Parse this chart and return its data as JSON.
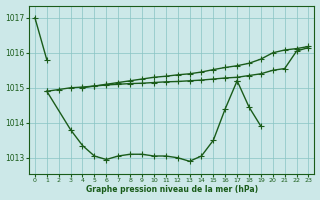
{
  "xlabel": "Graphe pression niveau de la mer (hPa)",
  "background_color": "#cce8e8",
  "line_color": "#1a5c1a",
  "x": [
    0,
    1,
    2,
    3,
    4,
    5,
    6,
    7,
    8,
    9,
    10,
    11,
    12,
    13,
    14,
    15,
    16,
    17,
    18,
    19,
    20,
    21,
    22,
    23
  ],
  "series": {
    "s1": [
      1017.0,
      1015.8,
      null,
      null,
      null,
      null,
      null,
      null,
      null,
      null,
      null,
      null,
      null,
      null,
      null,
      null,
      null,
      null,
      null,
      null,
      null,
      null,
      null,
      null
    ],
    "s2": [
      null,
      1014.9,
      null,
      1013.8,
      1013.35,
      1013.05,
      1012.95,
      1013.05,
      1013.1,
      1013.1,
      1013.05,
      1013.05,
      1013.0,
      1012.9,
      1013.05,
      1013.5,
      1014.4,
      1015.2,
      null,
      null,
      null,
      null,
      null,
      null
    ],
    "s3": [
      null,
      null,
      null,
      null,
      null,
      null,
      null,
      null,
      null,
      null,
      null,
      null,
      null,
      null,
      null,
      null,
      null,
      1015.2,
      1014.45,
      1013.9,
      null,
      null,
      null,
      null
    ],
    "s4": [
      null,
      1014.9,
      1014.95,
      1015.0,
      1015.02,
      1015.05,
      1015.08,
      1015.1,
      1015.12,
      1015.13,
      1015.15,
      1015.17,
      1015.18,
      1015.2,
      1015.22,
      1015.25,
      1015.28,
      1015.3,
      1015.35,
      1015.4,
      1015.5,
      1015.55,
      1016.05,
      1016.15
    ],
    "s5": [
      null,
      null,
      null,
      null,
      1015.0,
      1015.05,
      1015.1,
      1015.15,
      1015.2,
      1015.25,
      1015.3,
      1015.33,
      1015.37,
      1015.4,
      1015.45,
      1015.52,
      1015.58,
      1015.63,
      1015.7,
      1015.82,
      1016.0,
      1016.08,
      1016.12,
      1016.18
    ]
  },
  "ylim": [
    1012.55,
    1017.35
  ],
  "yticks": [
    1013,
    1014,
    1015,
    1016,
    1017
  ],
  "xticks": [
    0,
    1,
    2,
    3,
    4,
    5,
    6,
    7,
    8,
    9,
    10,
    11,
    12,
    13,
    14,
    15,
    16,
    17,
    18,
    19,
    20,
    21,
    22,
    23
  ]
}
